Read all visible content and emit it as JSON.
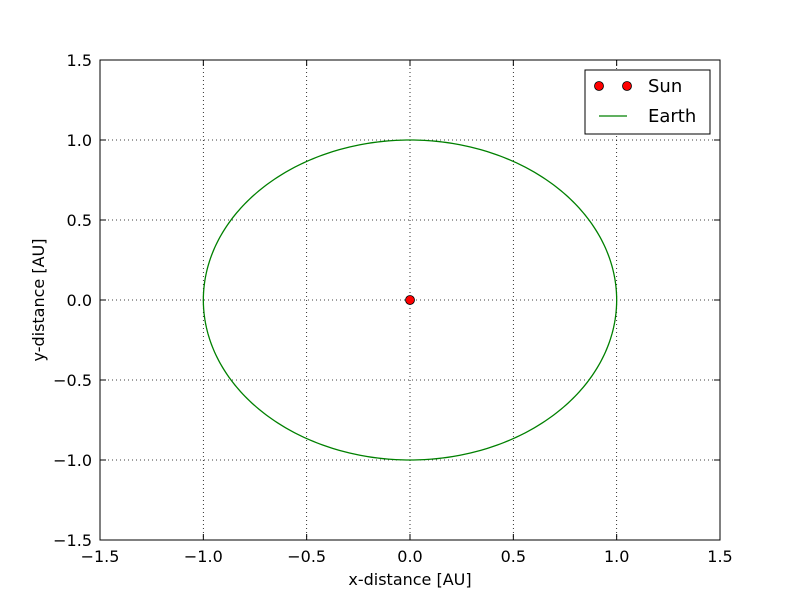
{
  "chart_data": {
    "type": "scatter",
    "title": "",
    "xlabel": "x-distance [AU]",
    "ylabel": "y-distance [AU]",
    "xlim": [
      -1.5,
      1.5
    ],
    "ylim": [
      -1.5,
      1.5
    ],
    "x_ticks": [
      -1.5,
      -1.0,
      -0.5,
      0.0,
      0.5,
      1.0,
      1.5
    ],
    "y_ticks": [
      -1.5,
      -1.0,
      -0.5,
      0.0,
      0.5,
      1.0,
      1.5
    ],
    "x_tick_labels": [
      "−1.5",
      "−1.0",
      "−0.5",
      "0.0",
      "0.5",
      "1.0",
      "1.5"
    ],
    "y_tick_labels": [
      "−1.5",
      "−1.0",
      "−0.5",
      "0.0",
      "0.5",
      "1.0",
      "1.5"
    ],
    "grid": true,
    "grid_style": "dotted",
    "legend_position": "top-right",
    "series": [
      {
        "name": "Sun",
        "kind": "markers",
        "color": "#ff0000",
        "marker": "circle",
        "points": [
          {
            "x": 0.0,
            "y": 0.0
          }
        ]
      },
      {
        "name": "Earth",
        "kind": "line",
        "color": "#008000",
        "shape": "circular orbit",
        "center": {
          "x": 0.0,
          "y": 0.0
        },
        "radius": 1.0
      }
    ]
  }
}
